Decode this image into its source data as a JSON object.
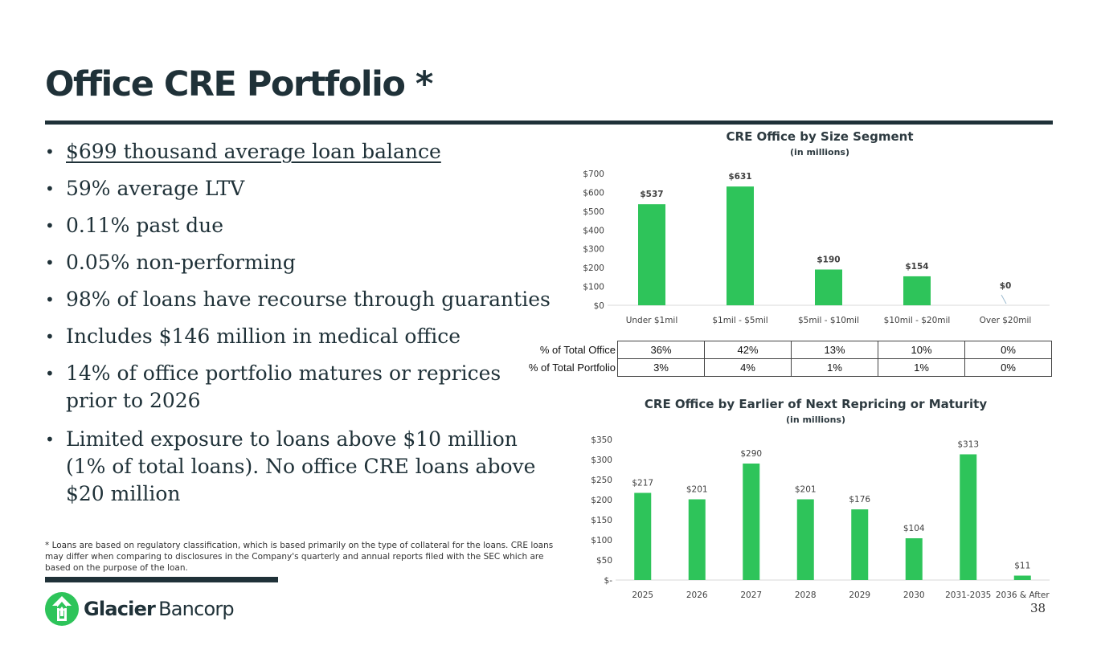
{
  "page": {
    "title": "Office CRE Portfolio *",
    "page_number": "38"
  },
  "bullets": [
    "$699 thousand average loan balance",
    "59% average LTV",
    "0.11% past due",
    "0.05% non-performing",
    "98% of loans have recourse through guaranties",
    "Includes $146 million in medical office",
    "14% of office portfolio matures or reprices prior to 2026",
    "Limited exposure to loans above $10 million (1% of total loans). No office CRE loans above $20 million"
  ],
  "footnote": "* Loans are based on regulatory classification, which is based primarily on the type of collateral for the loans. CRE loans may differ when comparing to disclosures in the Company's quarterly and annual reports filed with the SEC which are based on the purpose of the loan.",
  "logo": {
    "bold": "Glacier",
    "light": "Bancorp"
  },
  "colors": {
    "bar": "#2ec45a",
    "dark": "#1f3138",
    "axis": "#595959"
  },
  "pct_table": {
    "rows": [
      {
        "label": "% of Total Office",
        "values": [
          "36%",
          "42%",
          "13%",
          "10%",
          "0%"
        ]
      },
      {
        "label": "% of Total Portfolio",
        "values": [
          "3%",
          "4%",
          "1%",
          "1%",
          "0%"
        ]
      }
    ]
  },
  "chart_data": [
    {
      "type": "bar",
      "title": "CRE Office by Size Segment",
      "subtitle": "(in millions)",
      "categories": [
        "Under $1mil",
        "$1mil - $5mil",
        "$5mil - $10mil",
        "$10mil - $20mil",
        "Over $20mil"
      ],
      "values": [
        537,
        631,
        190,
        154,
        0
      ],
      "data_labels": [
        "$537",
        "$631",
        "$190",
        "$154",
        "$0"
      ],
      "yticks": [
        "$0",
        "$100",
        "$200",
        "$300",
        "$400",
        "$500",
        "$600",
        "$700"
      ],
      "ylim": [
        0,
        700
      ],
      "grid": false
    },
    {
      "type": "bar",
      "title": "CRE Office by Earlier of Next Repricing or Maturity",
      "subtitle": "(in millions)",
      "categories": [
        "2025",
        "2026",
        "2027",
        "2028",
        "2029",
        "2030",
        "2031-2035",
        "2036 & After"
      ],
      "values": [
        217,
        201,
        290,
        201,
        176,
        104,
        313,
        11
      ],
      "data_labels": [
        "$217",
        "$201",
        "$290",
        "$201",
        "$176",
        "$104",
        "$313",
        "$11"
      ],
      "yticks": [
        "$-",
        "$50",
        "$100",
        "$150",
        "$200",
        "$250",
        "$300",
        "$350"
      ],
      "ylim": [
        0,
        350
      ],
      "grid": false
    }
  ]
}
